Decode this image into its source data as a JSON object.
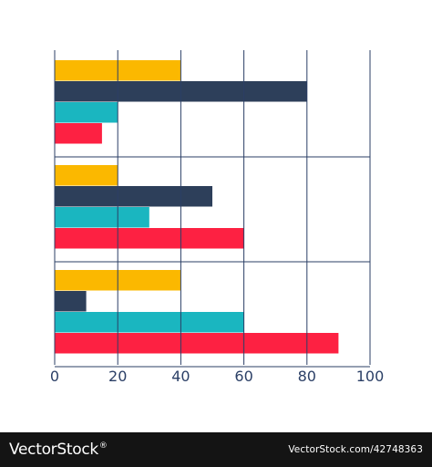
{
  "chart_data": {
    "type": "bar",
    "orientation": "horizontal",
    "categories": [
      "",
      "",
      ""
    ],
    "series": [
      {
        "color": "#fbb800",
        "values": [
          40,
          20,
          40
        ]
      },
      {
        "color": "#2d3f5a",
        "values": [
          80,
          50,
          10
        ]
      },
      {
        "color": "#1ab6c0",
        "values": [
          20,
          30,
          60
        ]
      },
      {
        "color": "#fd2142",
        "values": [
          15,
          60,
          90
        ]
      }
    ],
    "xlim": [
      0,
      100
    ],
    "x_ticks": [
      "0",
      "20",
      "40",
      "60",
      "80",
      "100"
    ],
    "grid": true,
    "title": "",
    "xlabel": "",
    "ylabel": ""
  },
  "colors": {
    "gridline": "#2b3f66",
    "footer_bg": "#141414"
  },
  "footer": {
    "brand": "VectorStock",
    "registered_mark": "®",
    "credit": "VectorStock.com/42748363"
  }
}
